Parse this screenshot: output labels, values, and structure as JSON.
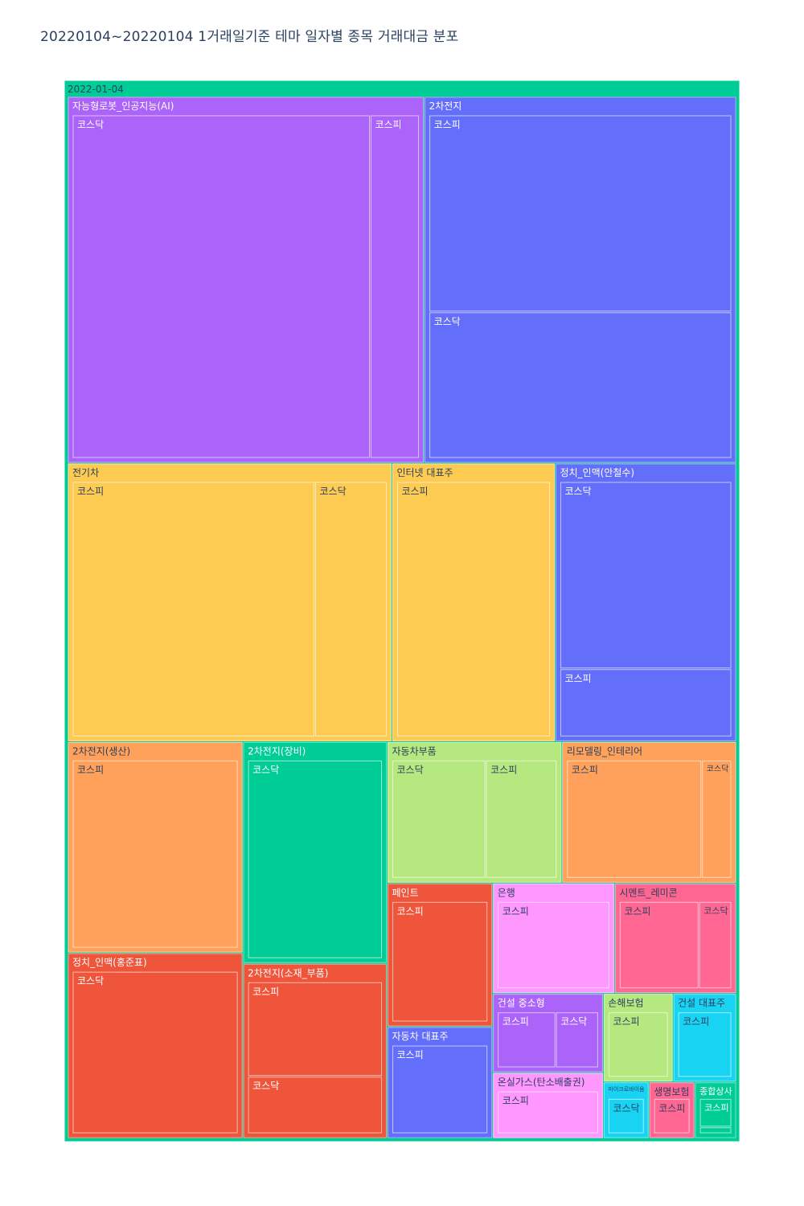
{
  "title": "20220104~20220104 1거래일기준 테마 일자별 종목 거래대금 분포",
  "chart_data": {
    "type": "treemap",
    "root": {
      "label": "2022-01-04",
      "color": "#00cc96",
      "children": [
        {
          "label": "자능형로봇_인공지능(AI)",
          "color": "#ab63fa",
          "children": [
            {
              "label": "코스닥",
              "value": 1000
            },
            {
              "label": "코스피",
              "value": 165
            }
          ]
        },
        {
          "label": "2차전지",
          "color": "#636efa",
          "children": [
            {
              "label": "코스피",
              "value": 585
            },
            {
              "label": "코스닥",
              "value": 435
            }
          ]
        },
        {
          "label": "전기차",
          "color": "#fecb52",
          "children": [
            {
              "label": "코스피",
              "value": 620
            },
            {
              "label": "코스닥",
              "value": 185
            }
          ]
        },
        {
          "label": "인터넷 대표주",
          "color": "#fecb52",
          "children": [
            {
              "label": "코스피",
              "value": 405
            }
          ]
        },
        {
          "label": "정치_인맥(안철수)",
          "color": "#636efa",
          "children": [
            {
              "label": "코스닥",
              "value": 330
            },
            {
              "label": "코스피",
              "value": 120
            }
          ]
        },
        {
          "label": "2차전지(생산)",
          "color": "#ffa15a",
          "children": [
            {
              "label": "코스피",
              "value": 330
            }
          ]
        },
        {
          "label": "정치_인맥(홍준표)",
          "color": "#ef553b",
          "children": [
            {
              "label": "코스닥",
              "value": 290
            }
          ]
        },
        {
          "label": "2차전지(장비)",
          "color": "#00cc96",
          "children": [
            {
              "label": "코스닥",
              "value": 285
            }
          ]
        },
        {
          "label": "2차전지(소재_부품)",
          "color": "#ef553b",
          "children": [
            {
              "label": "코스피",
              "value": 140
            },
            {
              "label": "코스닥",
              "value": 85
            }
          ]
        },
        {
          "label": "자동차부품",
          "color": "#b6e880",
          "children": [
            {
              "label": "코스닥",
              "value": 125
            },
            {
              "label": "코스피",
              "value": 95
            }
          ]
        },
        {
          "label": "리모델링_인테리어",
          "color": "#ffa15a",
          "children": [
            {
              "label": "코스피",
              "value": 180
            },
            {
              "label": "코스닥",
              "value": 40
            }
          ]
        },
        {
          "label": "페인트",
          "color": "#ef553b",
          "children": [
            {
              "label": "코스피",
              "value": 135
            }
          ]
        },
        {
          "label": "자동차 대표주",
          "color": "#636efa",
          "children": [
            {
              "label": "코스피",
              "value": 105
            }
          ]
        },
        {
          "label": "은행",
          "color": "#ff97ff",
          "children": [
            {
              "label": "코스피",
              "value": 120
            }
          ]
        },
        {
          "label": "시멘트_레미콘",
          "color": "#ff6692",
          "children": [
            {
              "label": "코스피",
              "value": 85
            },
            {
              "label": "코스닥",
              "value": 35
            }
          ]
        },
        {
          "label": "건설 중소형",
          "color": "#ab63fa",
          "children": [
            {
              "label": "코스피",
              "value": 45
            },
            {
              "label": "코스닥",
              "value": 33
            }
          ]
        },
        {
          "label": "온실가스(탄소배출권)",
          "color": "#ff97ff",
          "children": [
            {
              "label": "코스피",
              "value": 65
            }
          ]
        },
        {
          "label": "손해보험",
          "color": "#b6e880",
          "children": [
            {
              "label": "코스피",
              "value": 55
            }
          ]
        },
        {
          "label": "건설 대표주",
          "color": "#19d3f3",
          "children": [
            {
              "label": "코스피",
              "value": 50
            }
          ]
        },
        {
          "label": "마이크로바이옴",
          "color": "#19d3f3",
          "children": [
            {
              "label": "코스닥",
              "value": 23
            }
          ]
        },
        {
          "label": "생명보험",
          "color": "#ff6692",
          "children": [
            {
              "label": "코스피",
              "value": 23
            }
          ]
        },
        {
          "label": "종합상사",
          "color": "#00cc96",
          "children": [
            {
              "label": "코스피",
              "value": 17
            },
            {
              "label": "",
              "value": 4
            }
          ]
        }
      ]
    }
  }
}
